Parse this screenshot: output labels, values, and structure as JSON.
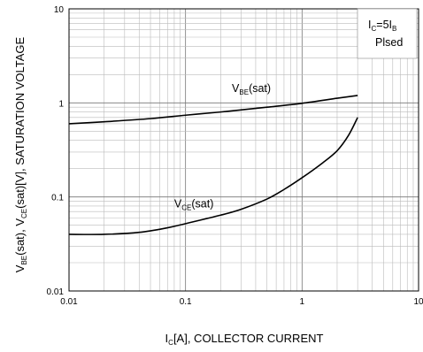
{
  "chart_data": {
    "type": "line",
    "title": "",
    "xscale": "log",
    "yscale": "log",
    "xlim": [
      0.01,
      10
    ],
    "ylim": [
      0.01,
      10
    ],
    "grid": true,
    "xticks": [
      {
        "value": 0.01,
        "label": "0.01"
      },
      {
        "value": 0.1,
        "label": "0.1"
      },
      {
        "value": 1,
        "label": "1"
      },
      {
        "value": 10,
        "label": "10"
      }
    ],
    "yticks": [
      {
        "value": 0.01,
        "label": "0.01"
      },
      {
        "value": 0.1,
        "label": "0.1"
      },
      {
        "value": 1,
        "label": "1"
      },
      {
        "value": 10,
        "label": "10"
      }
    ],
    "xlabel": {
      "main1": "I",
      "sub1": "C",
      "main2": "[A], COLLECTOR CURRENT"
    },
    "ylabel": {
      "p1": "V",
      "s1": "BE",
      "p2": "(sat), V",
      "s2": "CE",
      "p3": "(sat)[V], SATURATION VOLTAGE"
    },
    "legend_box": {
      "line1": {
        "a": "I",
        "b": "C",
        "c": "=5I",
        "d": "B"
      },
      "line2": "Plsed",
      "position": "top-right"
    },
    "series": [
      {
        "label": {
          "main": "V",
          "sub": "BE",
          "tail": "(sat)"
        },
        "label_at": {
          "x": 0.25,
          "y": 1.3
        },
        "points": [
          [
            0.01,
            0.6
          ],
          [
            0.02,
            0.63
          ],
          [
            0.05,
            0.68
          ],
          [
            0.1,
            0.74
          ],
          [
            0.2,
            0.8
          ],
          [
            0.5,
            0.9
          ],
          [
            1,
            0.99
          ],
          [
            2,
            1.12
          ],
          [
            3,
            1.2
          ]
        ]
      },
      {
        "label": {
          "main": "V",
          "sub": "CE",
          "tail": "(sat)"
        },
        "label_at": {
          "x": 0.08,
          "y": 0.077
        },
        "points": [
          [
            0.01,
            0.04
          ],
          [
            0.02,
            0.04
          ],
          [
            0.04,
            0.042
          ],
          [
            0.07,
            0.047
          ],
          [
            0.1,
            0.052
          ],
          [
            0.2,
            0.064
          ],
          [
            0.3,
            0.074
          ],
          [
            0.5,
            0.095
          ],
          [
            0.7,
            0.12
          ],
          [
            1,
            0.16
          ],
          [
            1.5,
            0.23
          ],
          [
            2,
            0.31
          ],
          [
            2.5,
            0.45
          ],
          [
            3,
            0.7
          ]
        ]
      }
    ]
  }
}
